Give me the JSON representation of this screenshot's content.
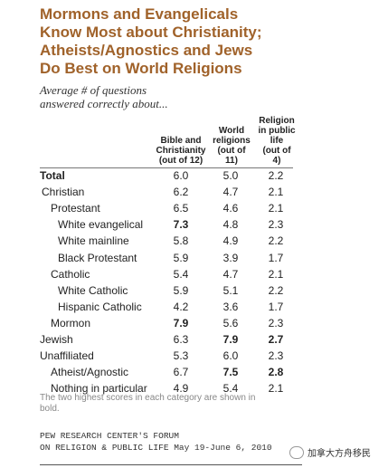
{
  "header": {
    "title_lines": [
      "Mormons and Evangelicals",
      "Know Most about Christianity;",
      "Atheists/Agnostics and Jews",
      "Do Best on World Religions"
    ],
    "subtitle_lines": [
      "Average # of questions",
      "answered correctly about..."
    ]
  },
  "columns": [
    {
      "lines": [
        "Bible and",
        "Christianity",
        "(out of 12)"
      ]
    },
    {
      "lines": [
        "World",
        "religions",
        "(out of",
        "11)"
      ]
    },
    {
      "lines": [
        "Religion",
        "in public",
        "life",
        "(out of",
        "4)"
      ]
    }
  ],
  "chart_data": {
    "type": "table",
    "title": "Mormons and Evangelicals Know Most about Christianity; Atheists/Agnostics and Jews Do Best on World Religions",
    "subtitle": "Average # of questions answered correctly about...",
    "columns": [
      "Bible and Christianity (out of 12)",
      "World religions (out of 11)",
      "Religion in public life (out of 4)"
    ],
    "rows": [
      {
        "label": "Total",
        "indent": 0,
        "bold_label": true,
        "values": [
          "6.0",
          "5.0",
          "2.2"
        ],
        "bold": [
          false,
          false,
          false
        ]
      },
      {
        "label": "Christian",
        "indent": 1,
        "values": [
          "6.2",
          "4.7",
          "2.1"
        ],
        "bold": [
          false,
          false,
          false
        ]
      },
      {
        "label": "Protestant",
        "indent": 2,
        "values": [
          "6.5",
          "4.6",
          "2.1"
        ],
        "bold": [
          false,
          false,
          false
        ]
      },
      {
        "label": "White evangelical",
        "indent": 3,
        "values": [
          "7.3",
          "4.8",
          "2.3"
        ],
        "bold": [
          true,
          false,
          false
        ]
      },
      {
        "label": "White mainline",
        "indent": 3,
        "values": [
          "5.8",
          "4.9",
          "2.2"
        ],
        "bold": [
          false,
          false,
          false
        ]
      },
      {
        "label": "Black Protestant",
        "indent": 3,
        "values": [
          "5.9",
          "3.9",
          "1.7"
        ],
        "bold": [
          false,
          false,
          false
        ]
      },
      {
        "label": "Catholic",
        "indent": 2,
        "values": [
          "5.4",
          "4.7",
          "2.1"
        ],
        "bold": [
          false,
          false,
          false
        ]
      },
      {
        "label": "White Catholic",
        "indent": 3,
        "values": [
          "5.9",
          "5.1",
          "2.2"
        ],
        "bold": [
          false,
          false,
          false
        ]
      },
      {
        "label": "Hispanic Catholic",
        "indent": 3,
        "values": [
          "4.2",
          "3.6",
          "1.7"
        ],
        "bold": [
          false,
          false,
          false
        ]
      },
      {
        "label": "Mormon",
        "indent": 2,
        "values": [
          "7.9",
          "5.6",
          "2.3"
        ],
        "bold": [
          true,
          false,
          false
        ]
      },
      {
        "label": "Jewish",
        "indent": 0,
        "values": [
          "6.3",
          "7.9",
          "2.7"
        ],
        "bold": [
          false,
          true,
          true
        ]
      },
      {
        "label": "Unaffiliated",
        "indent": 0,
        "values": [
          "5.3",
          "6.0",
          "2.3"
        ],
        "bold": [
          false,
          false,
          false
        ]
      },
      {
        "label": "Atheist/Agnostic",
        "indent": 2,
        "values": [
          "6.7",
          "7.5",
          "2.8"
        ],
        "bold": [
          false,
          true,
          true
        ]
      },
      {
        "label": "Nothing in particular",
        "indent": 2,
        "values": [
          "4.9",
          "5.4",
          "2.1"
        ],
        "bold": [
          false,
          false,
          false
        ]
      }
    ]
  },
  "footer": {
    "note_lines": [
      "The two highest scores in each category are shown in",
      "bold."
    ],
    "source_lines": [
      "PEW RESEARCH CENTER'S FORUM",
      "ON RELIGION & PUBLIC LIFE May 19-June 6, 2010"
    ]
  },
  "watermark": {
    "text": "加拿大方舟移民"
  }
}
